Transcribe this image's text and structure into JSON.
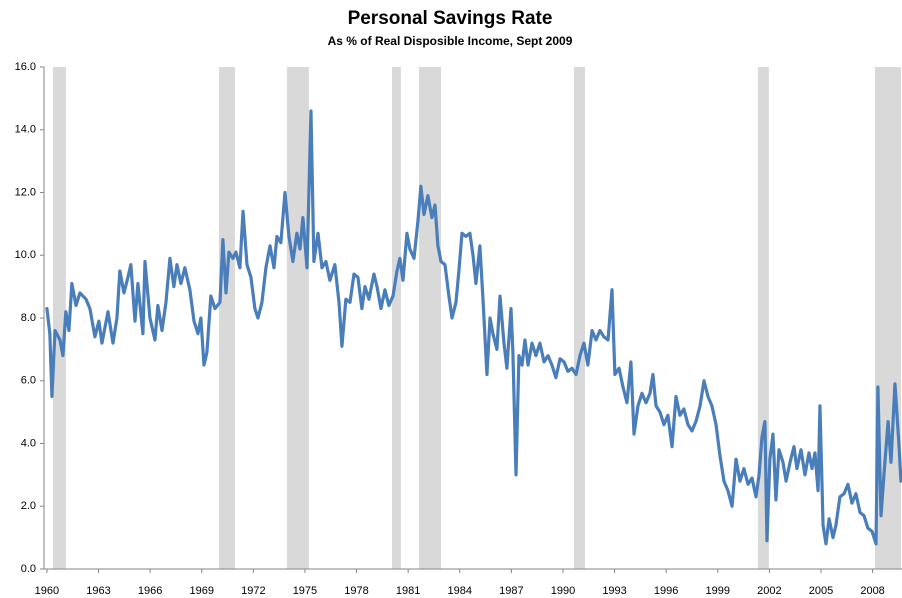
{
  "chart_data": {
    "type": "line",
    "title": "Personal Savings Rate",
    "subtitle": "As % of Real Disposible Income, Sept 2009",
    "color": "#4a7ebb",
    "shade_color": "#d9d9d9",
    "recessions": [
      [
        1960.35,
        1961.1
      ],
      [
        1970.0,
        1970.93
      ],
      [
        1973.95,
        1975.23
      ],
      [
        1980.06,
        1980.58
      ],
      [
        1981.63,
        1982.91
      ],
      [
        1990.64,
        1991.28
      ],
      [
        2001.33,
        2001.97
      ],
      [
        2008.14,
        2009.65
      ]
    ],
    "xlim": [
      1959.83,
      2009.71
    ],
    "xticks": [
      1960,
      1963,
      1966,
      1969,
      1972,
      1975,
      1978,
      1981,
      1984,
      1987,
      1990,
      1993,
      1996,
      1999,
      2002,
      2005,
      2008
    ],
    "ylim": [
      0,
      16
    ],
    "yticks": [
      {
        "value": 0,
        "label": "0.0"
      },
      {
        "value": 2,
        "label": "2.0"
      },
      {
        "value": 4,
        "label": "4.0"
      },
      {
        "value": 6,
        "label": "6.0"
      },
      {
        "value": 8,
        "label": "8.0"
      },
      {
        "value": 10,
        "label": "10.0"
      },
      {
        "value": 12,
        "label": "12.0"
      },
      {
        "value": 14,
        "label": "14.0"
      },
      {
        "value": 16,
        "label": "16.0"
      }
    ],
    "grid": false,
    "x": [
      1960.0,
      1960.17,
      1960.29,
      1960.47,
      1960.76,
      1960.93,
      1961.1,
      1961.28,
      1961.45,
      1961.69,
      1961.92,
      1962.27,
      1962.5,
      1962.79,
      1963.02,
      1963.2,
      1963.55,
      1963.84,
      1964.07,
      1964.24,
      1964.48,
      1964.71,
      1964.88,
      1965.12,
      1965.29,
      1965.58,
      1965.7,
      1965.99,
      1966.28,
      1966.45,
      1966.69,
      1966.92,
      1967.15,
      1967.38,
      1967.56,
      1967.79,
      1968.02,
      1968.31,
      1968.55,
      1968.78,
      1968.95,
      1969.13,
      1969.3,
      1969.53,
      1969.77,
      1970.06,
      1970.23,
      1970.41,
      1970.58,
      1970.81,
      1970.99,
      1971.22,
      1971.4,
      1971.63,
      1971.86,
      1972.09,
      1972.27,
      1972.5,
      1972.73,
      1972.97,
      1973.2,
      1973.37,
      1973.6,
      1973.84,
      1974.07,
      1974.3,
      1974.53,
      1974.71,
      1974.88,
      1975.12,
      1975.35,
      1975.52,
      1975.76,
      1975.99,
      1976.22,
      1976.45,
      1976.74,
      1976.98,
      1977.15,
      1977.38,
      1977.62,
      1977.85,
      1978.08,
      1978.31,
      1978.49,
      1978.72,
      1979.01,
      1979.19,
      1979.42,
      1979.65,
      1979.88,
      1980.12,
      1980.35,
      1980.52,
      1980.7,
      1980.93,
      1981.1,
      1981.34,
      1981.57,
      1981.74,
      1981.92,
      1982.15,
      1982.38,
      1982.56,
      1982.73,
      1982.91,
      1983.14,
      1983.37,
      1983.55,
      1983.78,
      1983.95,
      1984.13,
      1984.36,
      1984.59,
      1984.77,
      1984.94,
      1985.17,
      1985.35,
      1985.58,
      1985.76,
      1985.93,
      1986.16,
      1986.34,
      1986.57,
      1986.74,
      1986.98,
      1987.09,
      1987.27,
      1987.44,
      1987.62,
      1987.79,
      1987.97,
      1988.2,
      1988.43,
      1988.66,
      1988.9,
      1989.13,
      1989.36,
      1989.59,
      1989.83,
      1990.06,
      1990.29,
      1990.52,
      1990.76,
      1990.99,
      1991.22,
      1991.45,
      1991.69,
      1991.92,
      1992.15,
      1992.38,
      1992.62,
      1992.85,
      1993.02,
      1993.26,
      1993.49,
      1993.72,
      1993.95,
      1994.13,
      1994.36,
      1994.59,
      1994.83,
      1995.06,
      1995.23,
      1995.41,
      1995.64,
      1995.87,
      1996.1,
      1996.34,
      1996.57,
      1996.8,
      1997.03,
      1997.27,
      1997.5,
      1997.73,
      1997.97,
      1998.2,
      1998.43,
      1998.66,
      1998.9,
      1999.13,
      1999.36,
      1999.59,
      1999.83,
      2000.06,
      2000.29,
      2000.52,
      2000.76,
      2000.99,
      2001.22,
      2001.4,
      2001.57,
      2001.74,
      2001.86,
      2002.03,
      2002.21,
      2002.38,
      2002.56,
      2002.79,
      2002.97,
      2003.2,
      2003.43,
      2003.6,
      2003.84,
      2004.07,
      2004.3,
      2004.48,
      2004.65,
      2004.83,
      2004.94,
      2005.12,
      2005.29,
      2005.47,
      2005.7,
      2005.87,
      2006.1,
      2006.34,
      2006.57,
      2006.8,
      2007.03,
      2007.27,
      2007.5,
      2007.73,
      2007.97,
      2008.2,
      2008.31,
      2008.49,
      2008.66,
      2008.9,
      2009.07,
      2009.3,
      2009.53,
      2009.65
    ],
    "values": [
      8.3,
      7.5,
      5.5,
      7.6,
      7.3,
      6.8,
      8.2,
      7.6,
      9.1,
      8.4,
      8.8,
      8.6,
      8.3,
      7.4,
      7.9,
      7.2,
      8.2,
      7.2,
      8.0,
      9.5,
      8.8,
      9.3,
      9.7,
      7.9,
      9.1,
      7.5,
      9.8,
      8.0,
      7.3,
      8.4,
      7.6,
      8.5,
      9.9,
      9.0,
      9.7,
      9.1,
      9.6,
      8.9,
      7.9,
      7.5,
      8.0,
      6.5,
      6.9,
      8.7,
      8.3,
      8.5,
      10.5,
      8.8,
      10.1,
      9.9,
      10.1,
      9.6,
      11.4,
      9.7,
      9.3,
      8.3,
      8.0,
      8.5,
      9.6,
      10.3,
      9.6,
      10.6,
      10.4,
      12.0,
      10.6,
      9.8,
      10.7,
      10.2,
      11.2,
      9.6,
      14.6,
      9.8,
      10.7,
      9.6,
      9.8,
      9.2,
      9.7,
      8.5,
      7.1,
      8.6,
      8.5,
      9.4,
      9.3,
      8.3,
      9.0,
      8.6,
      9.4,
      9.0,
      8.3,
      8.9,
      8.4,
      8.7,
      9.5,
      9.9,
      9.2,
      10.7,
      10.2,
      9.9,
      11.1,
      12.2,
      11.3,
      11.9,
      11.2,
      11.6,
      10.3,
      9.8,
      9.7,
      8.7,
      8.0,
      8.5,
      9.5,
      10.7,
      10.6,
      10.7,
      10.0,
      9.1,
      10.3,
      8.6,
      6.2,
      8.0,
      7.5,
      7.0,
      8.7,
      7.2,
      6.4,
      8.3,
      6.9,
      3.0,
      6.8,
      6.5,
      7.3,
      6.5,
      7.2,
      6.8,
      7.2,
      6.6,
      6.8,
      6.5,
      6.1,
      6.7,
      6.6,
      6.3,
      6.4,
      6.2,
      6.8,
      7.2,
      6.5,
      7.6,
      7.3,
      7.6,
      7.4,
      7.3,
      8.9,
      6.2,
      6.4,
      5.8,
      5.3,
      6.6,
      4.3,
      5.2,
      5.6,
      5.3,
      5.6,
      6.2,
      5.2,
      5.0,
      4.6,
      4.9,
      3.9,
      5.5,
      4.9,
      5.1,
      4.6,
      4.4,
      4.7,
      5.2,
      6.0,
      5.5,
      5.2,
      4.6,
      3.6,
      2.8,
      2.5,
      2.0,
      3.5,
      2.8,
      3.2,
      2.7,
      2.9,
      2.3,
      3.0,
      4.2,
      4.7,
      0.9,
      3.5,
      4.3,
      2.2,
      3.8,
      3.4,
      2.8,
      3.4,
      3.9,
      3.2,
      3.8,
      3.0,
      3.7,
      3.2,
      3.7,
      2.5,
      5.2,
      1.4,
      0.8,
      1.6,
      1.0,
      1.4,
      2.3,
      2.4,
      2.7,
      2.1,
      2.4,
      1.8,
      1.7,
      1.3,
      1.2,
      0.8,
      5.8,
      1.7,
      3.0,
      4.7,
      3.4,
      5.9,
      4.0,
      2.8
    ]
  }
}
